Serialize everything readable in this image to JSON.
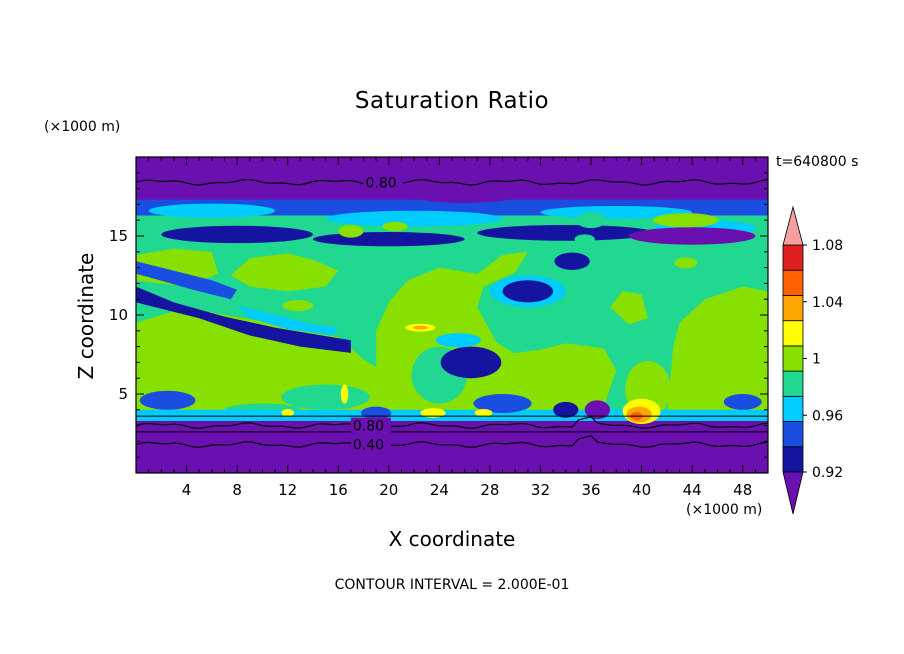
{
  "chart_data": {
    "type": "heatmap",
    "title": "Saturation Ratio",
    "xlabel": "X coordinate",
    "ylabel": "Z coordinate",
    "x_unit": "(×1000 m)",
    "y_unit": "(×1000 m)",
    "time_label": "t=640800 s",
    "footer": "CONTOUR INTERVAL = 2.000E-01",
    "xlim": [
      0,
      50
    ],
    "ylim": [
      0,
      20
    ],
    "x_ticks": [
      4,
      8,
      12,
      16,
      20,
      24,
      28,
      32,
      36,
      40,
      44,
      48
    ],
    "y_ticks": [
      5,
      10,
      15
    ],
    "contour_line_labels": [
      "0.80",
      "0.80",
      "0.40"
    ],
    "colorbar": {
      "tick_labels": [
        "1.08",
        "1.04",
        "1",
        "0.96",
        "0.92"
      ],
      "levels": [
        0.9,
        0.92,
        0.94,
        0.96,
        0.98,
        1.0,
        1.02,
        1.04,
        1.06,
        1.08,
        1.1
      ],
      "colors": [
        "#6a0fb0",
        "#1414a0",
        "#1a4ee0",
        "#00ccff",
        "#20d890",
        "#88e000",
        "#ffff00",
        "#ffa500",
        "#ff6000",
        "#e02020",
        "#f4a0a0"
      ]
    },
    "regions": {
      "upper_dry_layer_z": [
        18,
        20
      ],
      "moist_layer_z": [
        3.5,
        17
      ],
      "lower_dry_layer_z": [
        0,
        3.2
      ]
    }
  }
}
